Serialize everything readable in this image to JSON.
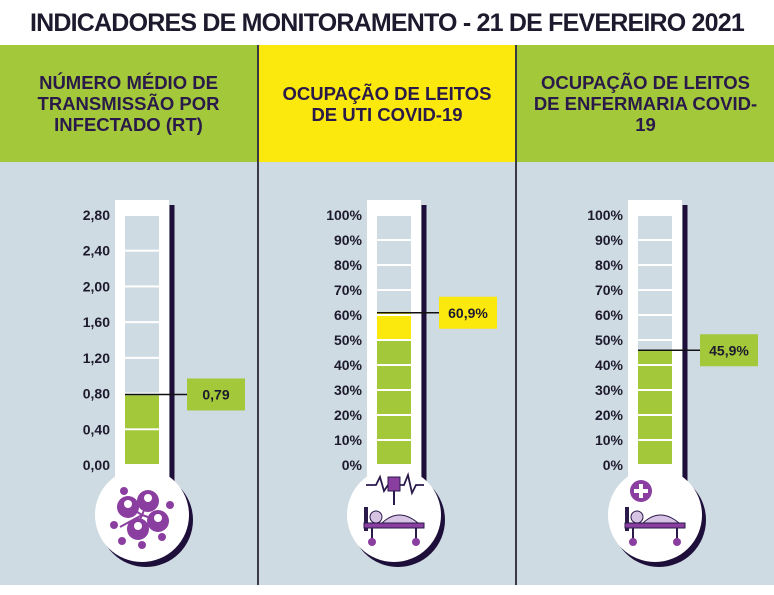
{
  "title": "INDICADORES DE MONITORAMENTO - 21 DE FEVEREIRO 2021",
  "colors": {
    "green": "#a3c839",
    "yellow": "#fbe80c",
    "empty": "#cfdbe2",
    "panel": "#cfdbe2",
    "dark": "#1e0f3a",
    "icon": "#8a3fa0"
  },
  "chart_data": [
    {
      "type": "gauge",
      "title": "NÚMERO MÉDIO DE TRANSMISSÃO POR INFECTADO (RT)",
      "header_color": "#a3c839",
      "ticks": [
        "2,80",
        "2,40",
        "2,00",
        "1,60",
        "1,20",
        "0,80",
        "0,40",
        "0,00"
      ],
      "ylim": [
        0,
        2.8
      ],
      "value": 0.79,
      "value_label": "0,79",
      "label_color": "#a3c839",
      "icon": "people-network-icon"
    },
    {
      "type": "gauge",
      "title": "OCUPAÇÃO DE LEITOS DE UTI COVID-19",
      "header_color": "#fbe80c",
      "ticks": [
        "100%",
        "90%",
        "80%",
        "70%",
        "60%",
        "50%",
        "40%",
        "30%",
        "20%",
        "10%",
        "0%"
      ],
      "ylim": [
        0,
        100
      ],
      "value": 60.9,
      "value_label": "60,9%",
      "label_color": "#fbe80c",
      "yellow_from": 50,
      "icon": "icu-bed-monitor-icon"
    },
    {
      "type": "gauge",
      "title": "OCUPAÇÃO DE LEITOS DE ENFERMARIA COVID-19",
      "header_color": "#a3c839",
      "ticks": [
        "100%",
        "90%",
        "80%",
        "70%",
        "60%",
        "50%",
        "40%",
        "30%",
        "20%",
        "10%",
        "0%"
      ],
      "ylim": [
        0,
        100
      ],
      "value": 45.9,
      "value_label": "45,9%",
      "label_color": "#a3c839",
      "icon": "ward-bed-cross-icon"
    }
  ]
}
